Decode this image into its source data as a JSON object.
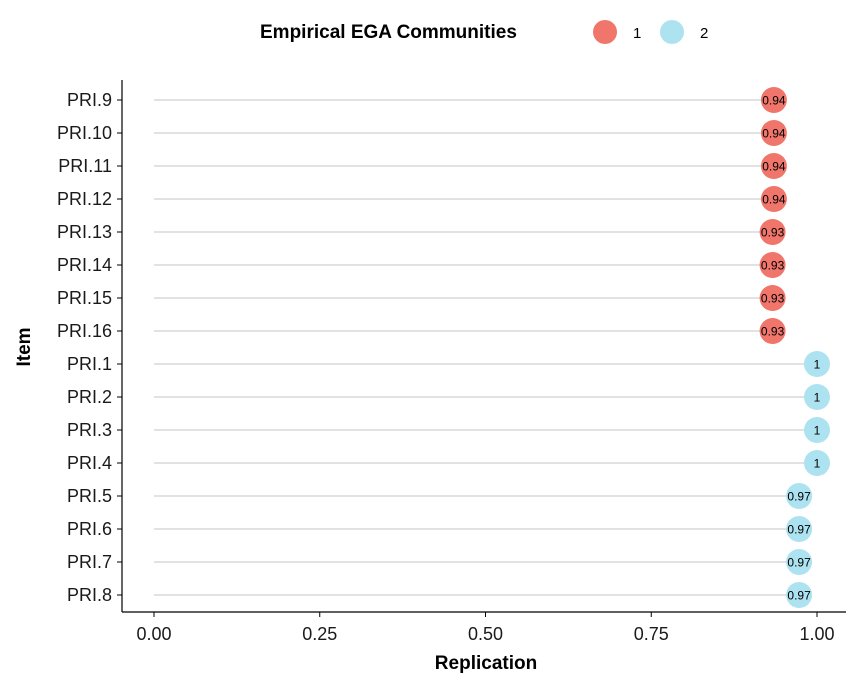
{
  "chart_data": {
    "type": "scatter",
    "xlabel": "Replication",
    "ylabel": "Item",
    "xlim": [
      0,
      1
    ],
    "x_ticks": [
      0,
      0.25,
      0.5,
      0.75,
      1
    ],
    "x_tick_labels": [
      "0.00",
      "0.25",
      "0.50",
      "0.75",
      "1.00"
    ],
    "grid": "horizontal",
    "legend": {
      "title": "Empirical EGA Communities",
      "position": "top",
      "entries": [
        {
          "label": "1",
          "color": "#F0756B"
        },
        {
          "label": "2",
          "color": "#ADE2F0"
        }
      ]
    },
    "points": [
      {
        "item": "PRI.9",
        "value": 0.935,
        "label": "0.94",
        "community": "1"
      },
      {
        "item": "PRI.10",
        "value": 0.935,
        "label": "0.94",
        "community": "1"
      },
      {
        "item": "PRI.11",
        "value": 0.935,
        "label": "0.94",
        "community": "1"
      },
      {
        "item": "PRI.12",
        "value": 0.935,
        "label": "0.94",
        "community": "1"
      },
      {
        "item": "PRI.13",
        "value": 0.933,
        "label": "0.93",
        "community": "1"
      },
      {
        "item": "PRI.14",
        "value": 0.933,
        "label": "0.93",
        "community": "1"
      },
      {
        "item": "PRI.15",
        "value": 0.933,
        "label": "0.93",
        "community": "1"
      },
      {
        "item": "PRI.16",
        "value": 0.933,
        "label": "0.93",
        "community": "1"
      },
      {
        "item": "PRI.1",
        "value": 1.0,
        "label": "1",
        "community": "2"
      },
      {
        "item": "PRI.2",
        "value": 1.0,
        "label": "1",
        "community": "2"
      },
      {
        "item": "PRI.3",
        "value": 1.0,
        "label": "1",
        "community": "2"
      },
      {
        "item": "PRI.4",
        "value": 1.0,
        "label": "1",
        "community": "2"
      },
      {
        "item": "PRI.5",
        "value": 0.973,
        "label": "0.97",
        "community": "2"
      },
      {
        "item": "PRI.6",
        "value": 0.973,
        "label": "0.97",
        "community": "2"
      },
      {
        "item": "PRI.7",
        "value": 0.973,
        "label": "0.97",
        "community": "2"
      },
      {
        "item": "PRI.8",
        "value": 0.973,
        "label": "0.97",
        "community": "2"
      }
    ]
  }
}
